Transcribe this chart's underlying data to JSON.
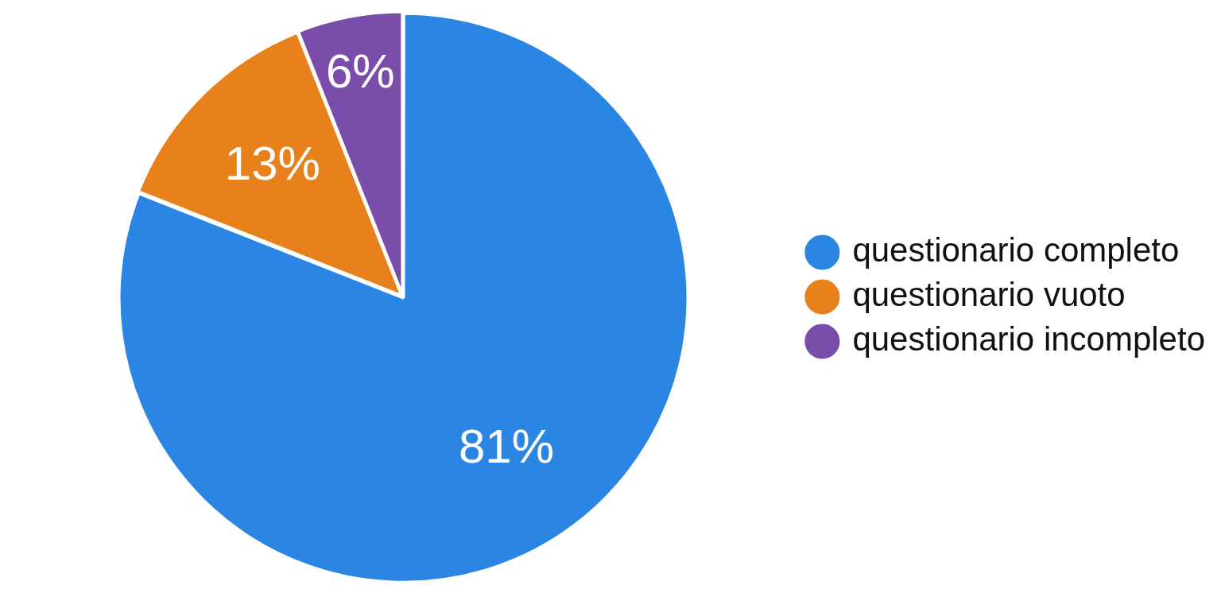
{
  "chart_data": {
    "type": "pie",
    "categories": [
      "questionario completo",
      "questionario vuoto",
      "questionario incompleto"
    ],
    "values": [
      81,
      13,
      6
    ],
    "colors": [
      "#2b86e3",
      "#e8801c",
      "#7b4dab"
    ],
    "value_labels": [
      "81%",
      "13%",
      "6%"
    ],
    "legend": "right"
  }
}
